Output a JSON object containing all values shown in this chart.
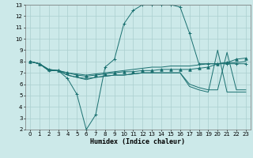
{
  "xlabel": "Humidex (Indice chaleur)",
  "background_color": "#cce9e9",
  "grid_color": "#aacfcf",
  "line_color": "#1a7070",
  "xlim": [
    -0.5,
    23.5
  ],
  "ylim": [
    2,
    13
  ],
  "xticks": [
    0,
    1,
    2,
    3,
    4,
    5,
    6,
    7,
    8,
    9,
    10,
    11,
    12,
    13,
    14,
    15,
    16,
    17,
    18,
    19,
    20,
    21,
    22,
    23
  ],
  "yticks": [
    2,
    3,
    4,
    5,
    6,
    7,
    8,
    9,
    10,
    11,
    12,
    13
  ],
  "series": [
    {
      "x": [
        0,
        1,
        2,
        3,
        4,
        5,
        6,
        7,
        8,
        9,
        10,
        11,
        12,
        13,
        14,
        15,
        16,
        17,
        18,
        19,
        20,
        21,
        22,
        23
      ],
      "y": [
        8,
        7.8,
        7.2,
        7.2,
        6.5,
        5.1,
        2.0,
        3.3,
        7.5,
        8.2,
        11.3,
        12.5,
        13.0,
        13.0,
        13.0,
        13.0,
        12.8,
        10.5,
        7.8,
        7.8,
        7.8,
        7.8,
        7.8,
        7.8
      ],
      "marker": "+"
    },
    {
      "x": [
        0,
        1,
        2,
        3,
        4,
        5,
        6,
        7,
        8,
        9,
        10,
        11,
        12,
        13,
        14,
        15,
        16,
        17,
        18,
        19,
        20,
        21,
        22,
        23
      ],
      "y": [
        8.0,
        7.8,
        7.3,
        7.2,
        7.0,
        6.9,
        6.8,
        6.9,
        7.0,
        7.1,
        7.2,
        7.3,
        7.4,
        7.5,
        7.5,
        7.6,
        7.6,
        7.6,
        7.7,
        7.8,
        7.8,
        7.9,
        7.9,
        8.0
      ],
      "marker": null
    },
    {
      "x": [
        0,
        1,
        2,
        3,
        4,
        5,
        6,
        7,
        8,
        9,
        10,
        11,
        12,
        13,
        14,
        15,
        16,
        17,
        18,
        19,
        20,
        21,
        22,
        23
      ],
      "y": [
        8.0,
        7.8,
        7.3,
        7.2,
        7.0,
        6.8,
        6.7,
        6.8,
        6.9,
        7.0,
        7.1,
        7.1,
        7.2,
        7.2,
        7.3,
        7.3,
        7.3,
        7.3,
        7.4,
        7.5,
        7.8,
        7.9,
        8.2,
        8.3
      ],
      "marker": "^"
    },
    {
      "x": [
        0,
        1,
        2,
        3,
        4,
        5,
        6,
        7,
        8,
        9,
        10,
        11,
        12,
        13,
        14,
        15,
        16,
        17,
        18,
        19,
        20,
        21,
        22,
        23
      ],
      "y": [
        8.0,
        7.8,
        7.2,
        7.2,
        6.8,
        6.6,
        6.5,
        6.6,
        6.7,
        6.8,
        6.8,
        6.9,
        7.0,
        7.0,
        7.0,
        7.0,
        7.0,
        6.0,
        5.7,
        5.5,
        5.5,
        8.8,
        5.5,
        5.5
      ],
      "marker": null
    },
    {
      "x": [
        0,
        1,
        2,
        3,
        4,
        5,
        6,
        7,
        8,
        9,
        10,
        11,
        12,
        13,
        14,
        15,
        16,
        17,
        18,
        19,
        20,
        21,
        22,
        23
      ],
      "y": [
        8.0,
        7.8,
        7.2,
        7.2,
        6.8,
        6.6,
        6.4,
        6.6,
        6.7,
        6.8,
        6.8,
        6.9,
        7.0,
        7.0,
        7.0,
        7.0,
        7.0,
        5.8,
        5.5,
        5.3,
        9.0,
        5.3,
        5.3,
        5.3
      ],
      "marker": null
    }
  ]
}
